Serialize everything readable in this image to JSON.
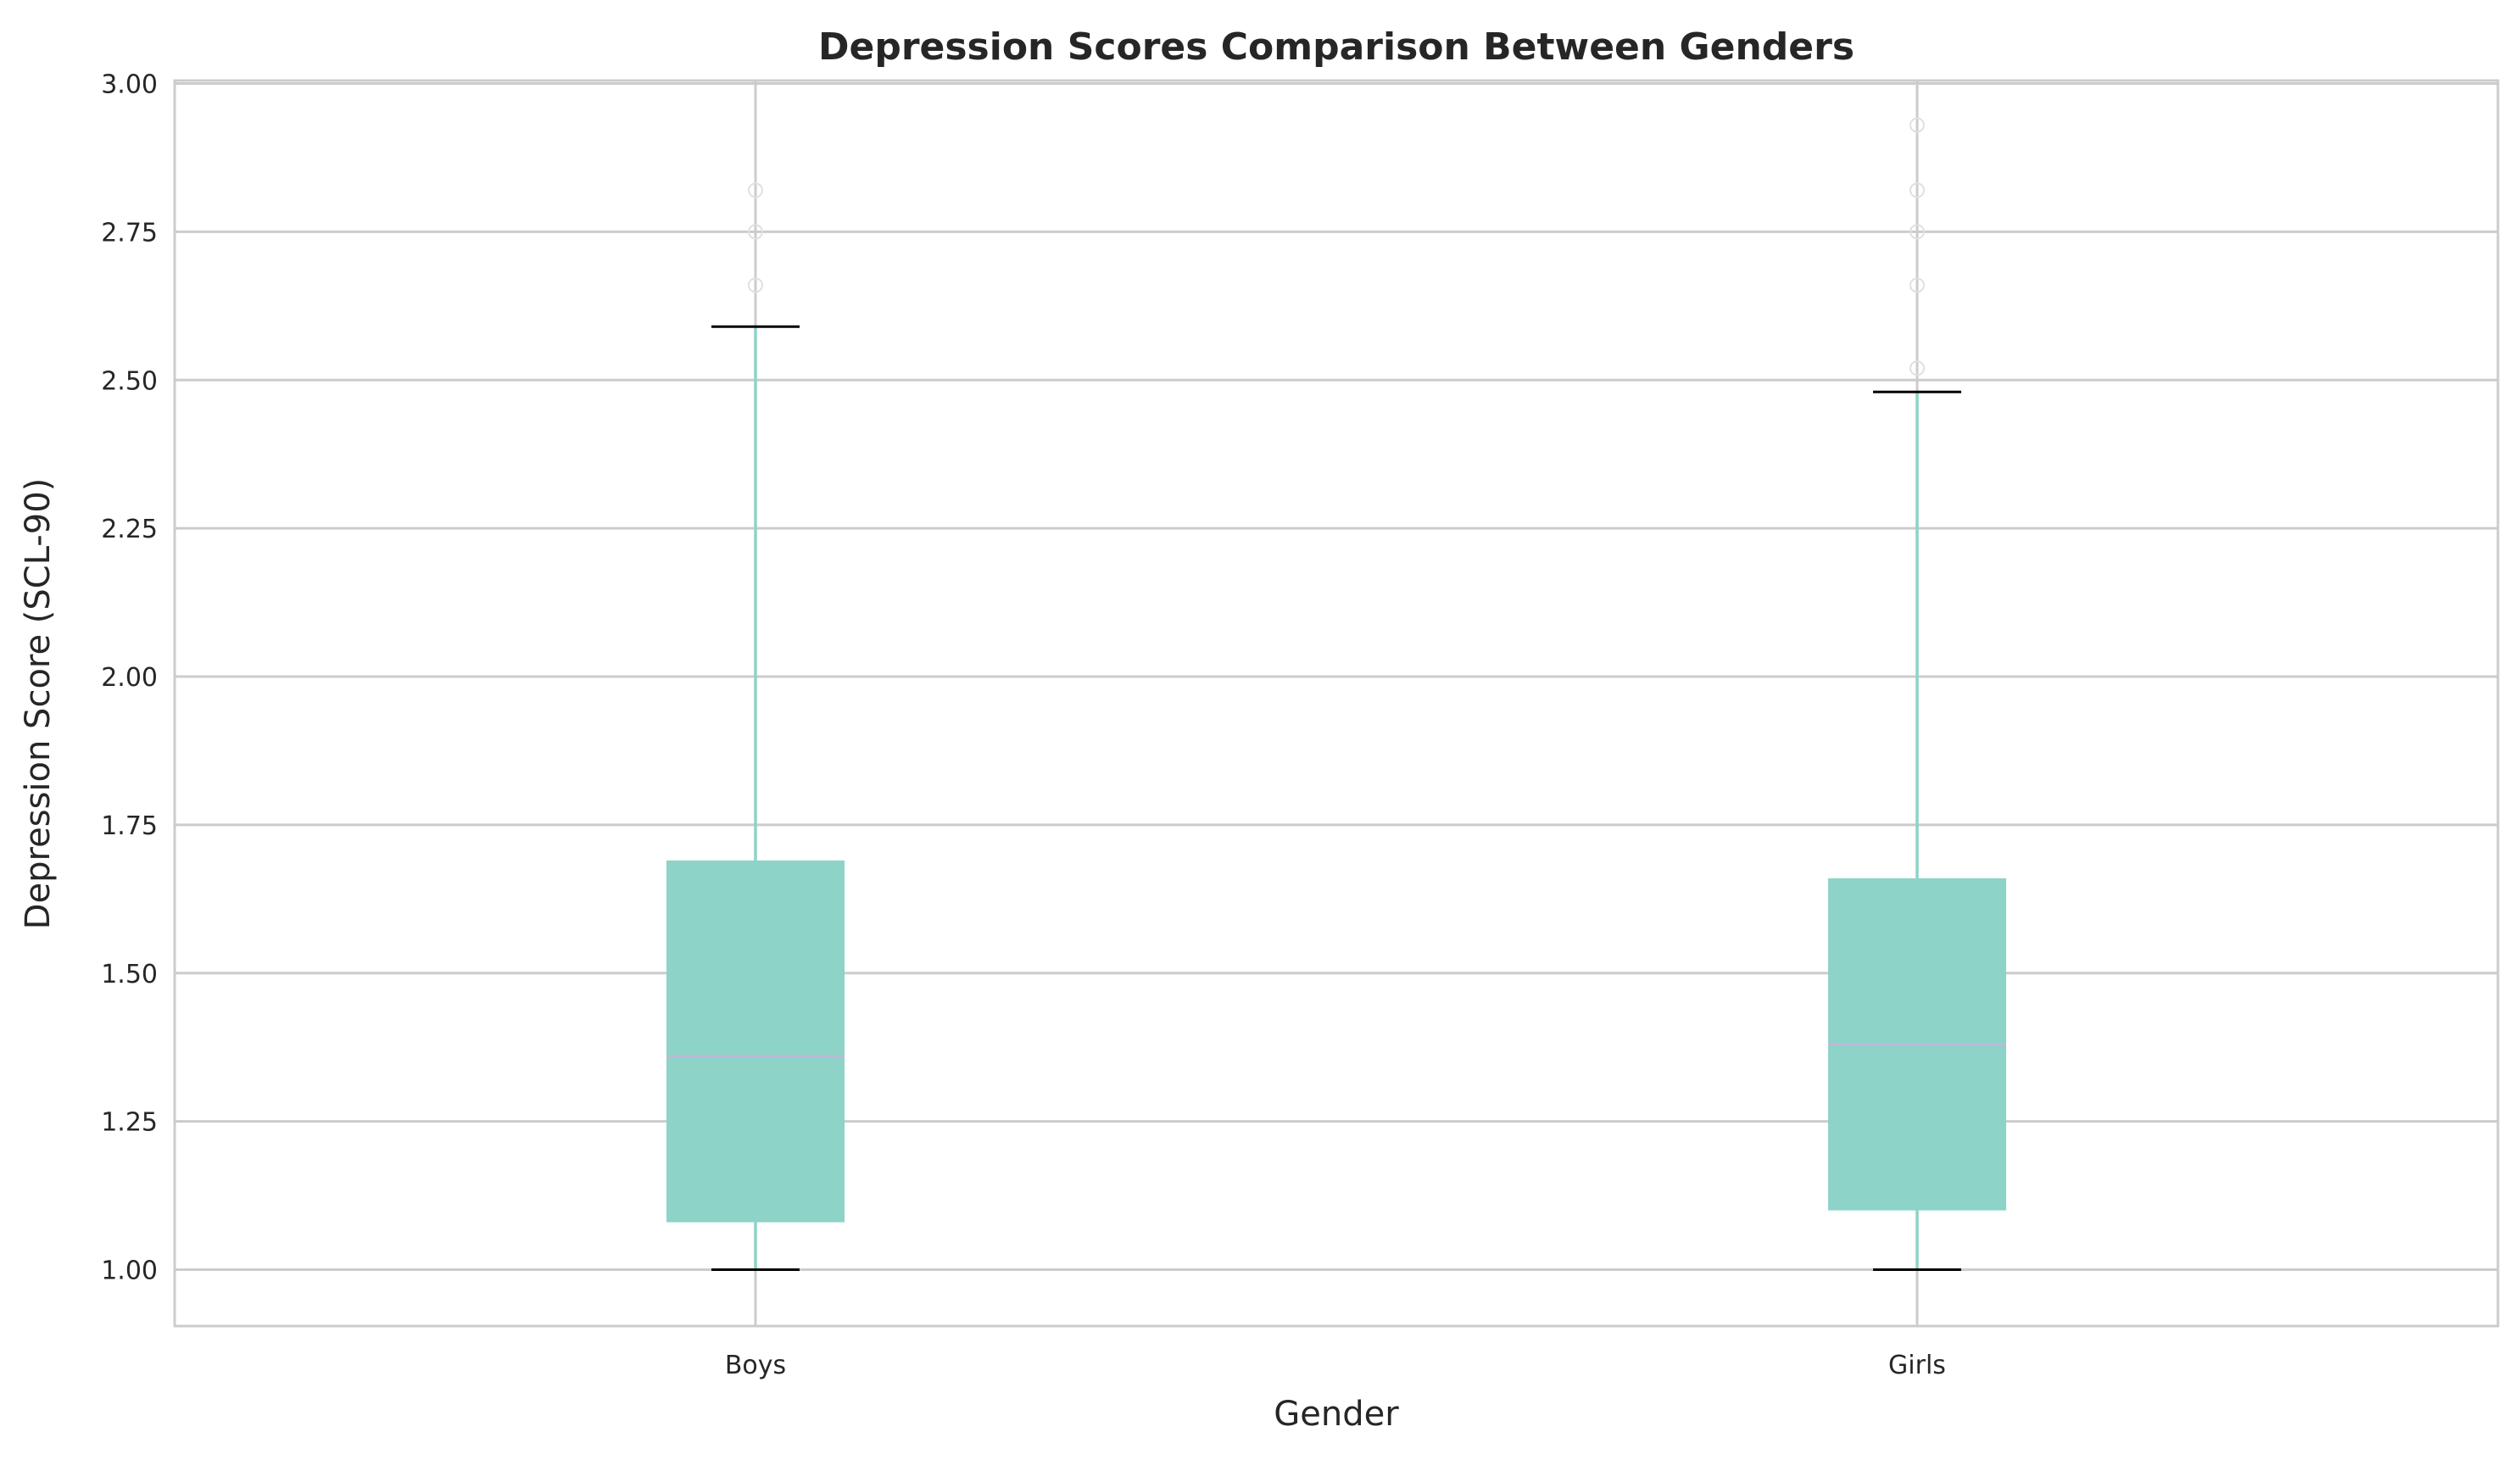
{
  "chart_data": {
    "type": "box",
    "title": "Depression Scores Comparison Between Genders",
    "xlabel": "Gender",
    "ylabel": "Depression Score (SCL-90)",
    "ylim": [
      0.905,
      3.005
    ],
    "yticks": [
      "1.00",
      "1.25",
      "1.50",
      "1.75",
      "2.00",
      "2.25",
      "2.50",
      "2.75",
      "3.00"
    ],
    "grid": true,
    "colors": {
      "box_fill": "#8dd3c7",
      "whisker": "#8dd3c7",
      "cap": "#000000",
      "median": "#bebada",
      "grid": "#cccccc",
      "frame": "#cccccc",
      "flier": "#e0e0e0"
    },
    "categories": [
      "Boys",
      "Girls"
    ],
    "boxes": [
      {
        "category": "Boys",
        "whisker_low": 1.0,
        "q1": 1.08,
        "median": 1.36,
        "q3": 1.69,
        "whisker_high": 2.59,
        "fliers": [
          2.66,
          2.75,
          2.82
        ]
      },
      {
        "category": "Girls",
        "whisker_low": 1.0,
        "q1": 1.1,
        "median": 1.38,
        "q3": 1.66,
        "whisker_high": 2.48,
        "fliers": [
          2.52,
          2.66,
          2.75,
          2.82,
          2.93
        ]
      }
    ]
  }
}
